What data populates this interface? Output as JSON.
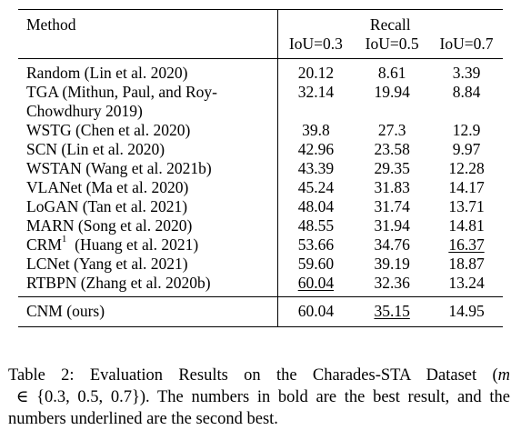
{
  "table": {
    "method_header": "Method",
    "group_header": "Recall",
    "columns": [
      "IoU=0.3",
      "IoU=0.5",
      "IoU=0.7"
    ],
    "rows": [
      {
        "method": "Random  (Lin et al. 2020)",
        "v1": "20.12",
        "v2": "8.61",
        "v3": "3.39"
      },
      {
        "method": "TGA  (Mithun, Paul, and Roy-\nChowdhury 2019)",
        "v1": "32.14",
        "v2": "19.94",
        "v3": "8.84"
      },
      {
        "method": "WSTG  (Chen et al. 2020)",
        "v1": "39.8",
        "v2": "27.3",
        "v3": "12.9"
      },
      {
        "method": "SCN  (Lin et al. 2020)",
        "v1": "42.96",
        "v2": "23.58",
        "v3": "9.97"
      },
      {
        "method": "WSTAN  (Wang et al. 2021b)",
        "v1": "43.39",
        "v2": "29.35",
        "v3": "12.28"
      },
      {
        "method": "VLANet  (Ma et al. 2020)",
        "v1": "45.24",
        "v2": "31.83",
        "v3": "14.17"
      },
      {
        "method": "LoGAN  (Tan et al. 2021)",
        "v1": "48.04",
        "v2": "31.74",
        "v3": "13.71"
      },
      {
        "method": "MARN  (Song et al. 2020)",
        "v1": "48.55",
        "v2": "31.94",
        "v3": "14.81"
      },
      {
        "method": "CRM",
        "sup": "1",
        "method_ref": "  (Huang et al. 2021)",
        "v1": "53.66",
        "v2": "34.76",
        "v3": "16.37"
      },
      {
        "method": "LCNet  (Yang et al. 2021)",
        "v1": "59.60",
        "v2": "39.19",
        "v3": "18.87"
      },
      {
        "method": "RTBPN  (Zhang et al. 2020b)",
        "v1": "60.04",
        "v2": "32.36",
        "v3": "13.24"
      }
    ],
    "ours": {
      "method": "CNM (ours)",
      "v1": "60.04",
      "v2": "35.15",
      "v3": "14.95"
    }
  },
  "caption": {
    "label": "Table 2: ",
    "text1": "Evaluation Results on the Charades-STA Dataset (",
    "math_var": "m",
    "math_rest": " ∈ {0.3, 0.5, 0.7}",
    "text2": "). The numbers in bold are the best result, and the numbers underlined are the second best."
  }
}
